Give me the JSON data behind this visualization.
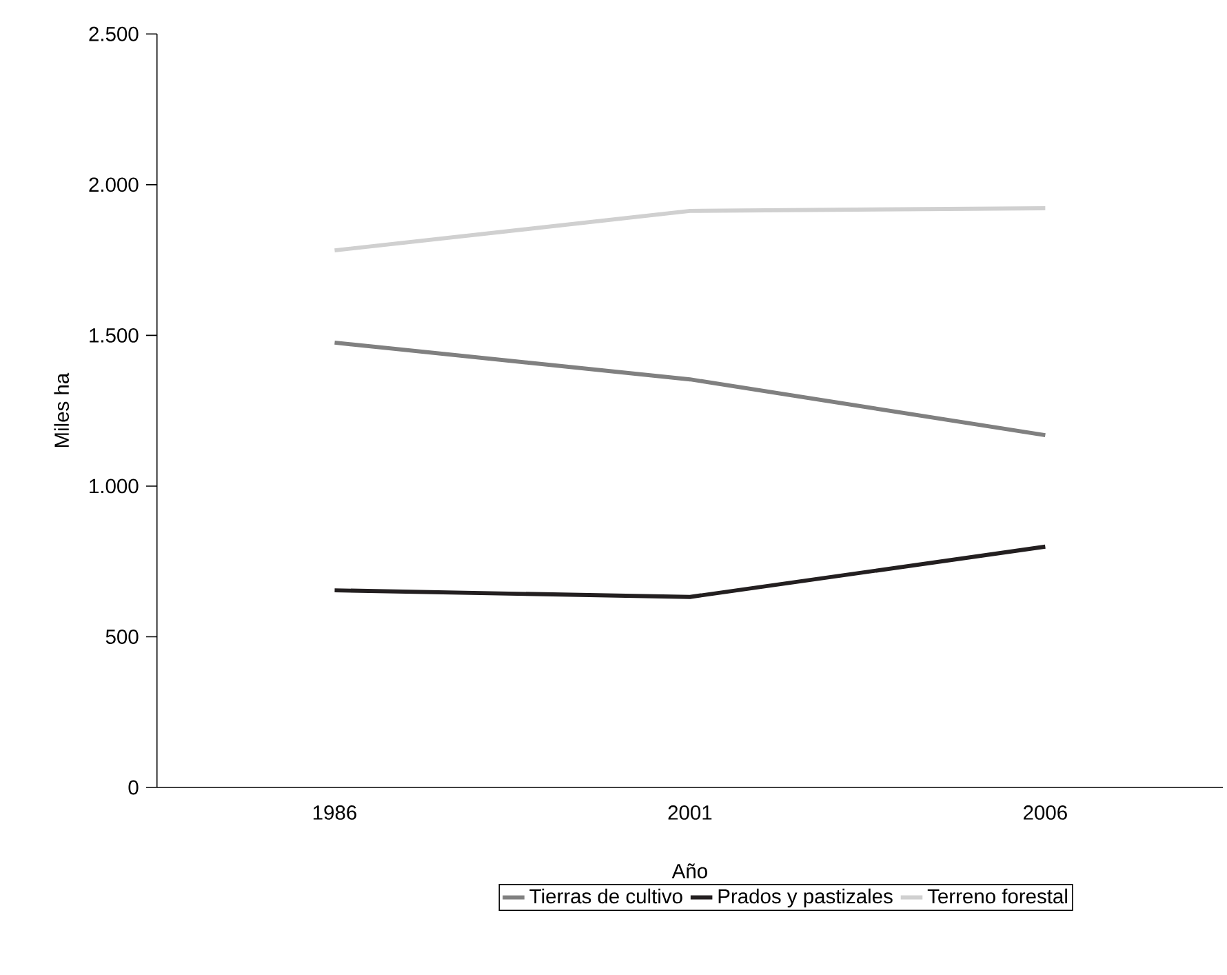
{
  "chart_data": {
    "type": "line",
    "xlabel": "Año",
    "ylabel": "Miles ha",
    "categories": [
      "1986",
      "2001",
      "2006"
    ],
    "series": [
      {
        "name": "Tierras de cultivo",
        "color": "#808080",
        "values": [
          1476,
          1354,
          1169
        ]
      },
      {
        "name": "Prados y pastizales",
        "color": "#231f20",
        "values": [
          654,
          632,
          799
        ]
      },
      {
        "name": "Terreno forestal",
        "color": "#d0d0d0",
        "values": [
          1782,
          1913,
          1922
        ]
      }
    ],
    "ylim": [
      0,
      2500
    ],
    "yticks": [
      0,
      500,
      {
        "value": 1000,
        "label": "1.000"
      },
      {
        "value": 1500,
        "label": "1.500"
      },
      {
        "value": 2000,
        "label": "2.000"
      },
      {
        "value": 2500,
        "label": "2.500"
      }
    ],
    "grid": false,
    "legend": "bottom",
    "marker": "none",
    "line_style": "solid"
  }
}
